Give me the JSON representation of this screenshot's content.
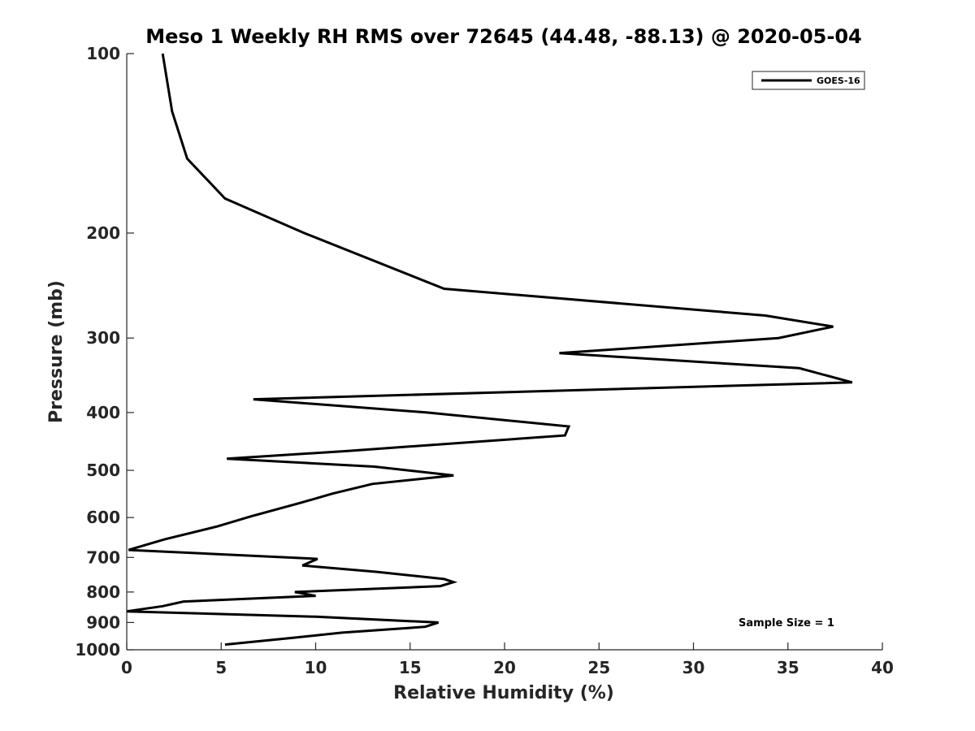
{
  "chart_data": {
    "type": "line",
    "title": "Meso 1 Weekly RH RMS over 72645 (44.48, -88.13) @ 2020-05-04",
    "xlabel": "Relative Humidity (%)",
    "ylabel": "Pressure (mb)",
    "xlim": [
      0,
      40
    ],
    "ylim": [
      100,
      1000
    ],
    "y_scale": "log",
    "y_reversed": true,
    "x_ticks": [
      0,
      5,
      10,
      15,
      20,
      25,
      30,
      35,
      40
    ],
    "x_tick_labels": [
      "0",
      "5",
      "10",
      "15",
      "20",
      "25",
      "30",
      "35",
      "40"
    ],
    "y_ticks": [
      100,
      200,
      300,
      400,
      500,
      600,
      700,
      800,
      900,
      1000
    ],
    "y_tick_labels": [
      "100",
      "200",
      "300",
      "400",
      "500",
      "600",
      "700",
      "800",
      "900",
      "1000"
    ],
    "grid": false,
    "legend_position": "top-right",
    "annotation": "Sample Size = 1",
    "series": [
      {
        "name": "GOES-16",
        "color": "#000000",
        "points": [
          [
            1.9,
            100
          ],
          [
            2.4,
            125
          ],
          [
            3.2,
            150
          ],
          [
            5.2,
            175
          ],
          [
            9.4,
            200
          ],
          [
            16.8,
            248
          ],
          [
            33.8,
            275
          ],
          [
            37.4,
            287
          ],
          [
            34.5,
            300
          ],
          [
            22.9,
            318
          ],
          [
            35.6,
            337
          ],
          [
            38.4,
            356
          ],
          [
            6.7,
            380
          ],
          [
            15.9,
            400
          ],
          [
            23.4,
            422
          ],
          [
            23.2,
            437
          ],
          [
            11.7,
            464
          ],
          [
            5.3,
            478
          ],
          [
            13.1,
            493
          ],
          [
            17.3,
            510
          ],
          [
            13.0,
            527
          ],
          [
            10.9,
            547
          ],
          [
            9.2,
            567
          ],
          [
            6.6,
            597
          ],
          [
            4.8,
            621
          ],
          [
            2.0,
            653
          ],
          [
            0.1,
            680
          ],
          [
            10.1,
            704
          ],
          [
            9.3,
            722
          ],
          [
            13.2,
            740
          ],
          [
            16.8,
            761
          ],
          [
            17.3,
            770
          ],
          [
            16.6,
            782
          ],
          [
            8.9,
            800
          ],
          [
            10.0,
            812
          ],
          [
            3.0,
            830
          ],
          [
            1.9,
            845
          ],
          [
            0.0,
            862
          ],
          [
            10.0,
            880
          ],
          [
            16.5,
            900
          ],
          [
            15.8,
            915
          ],
          [
            11.4,
            936
          ],
          [
            8.8,
            955
          ],
          [
            5.2,
            980
          ]
        ]
      }
    ]
  }
}
